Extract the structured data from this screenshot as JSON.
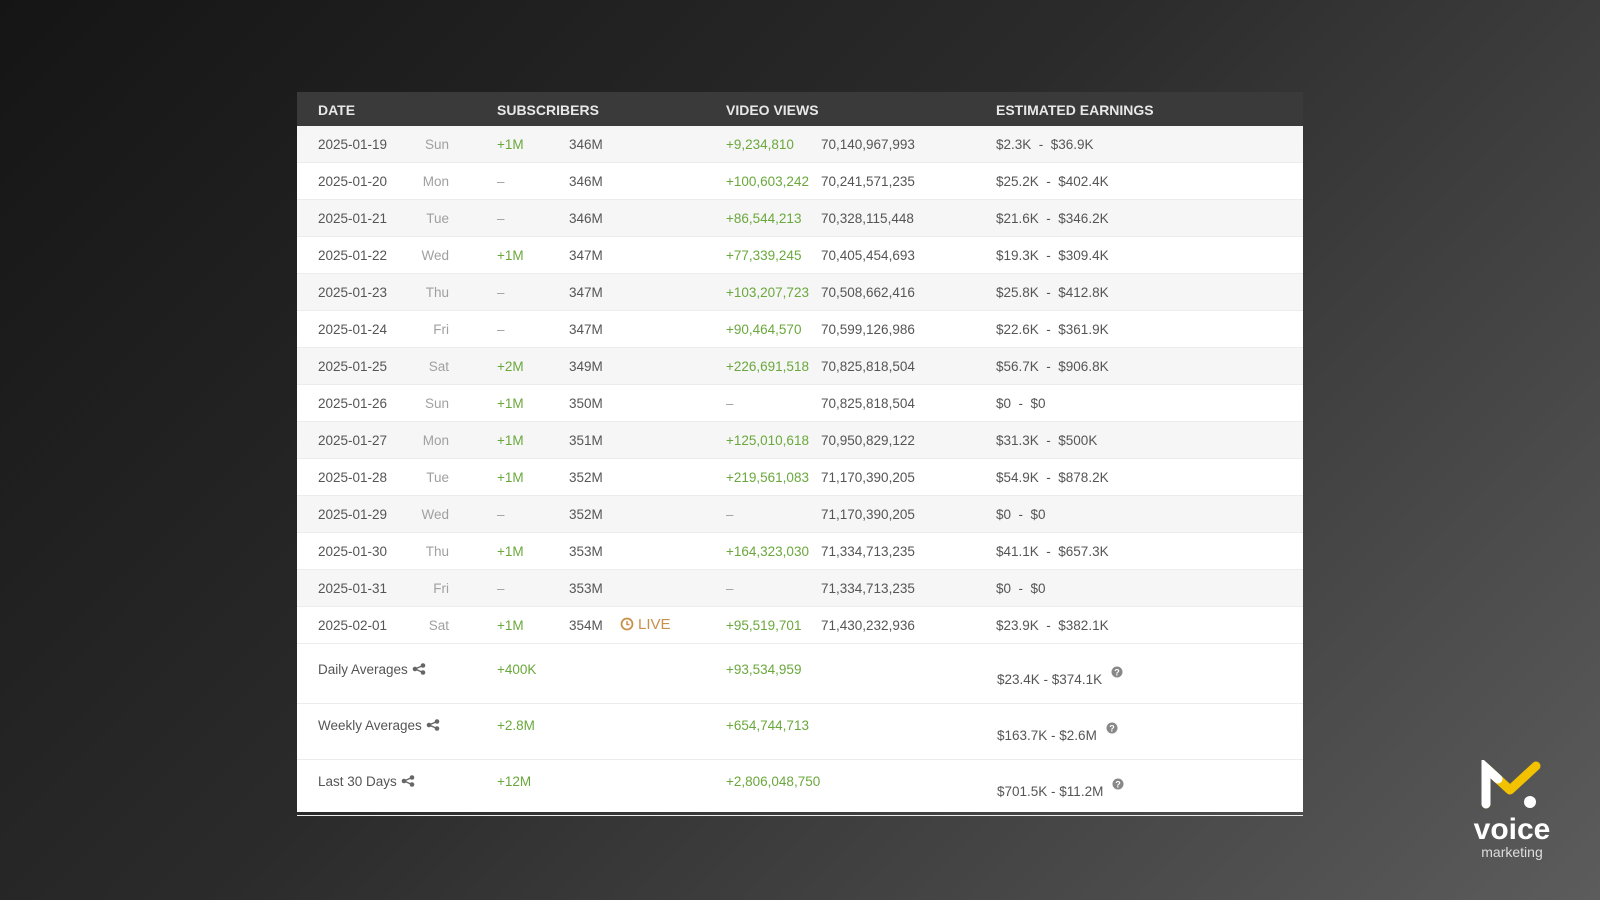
{
  "table": {
    "headers": [
      "DATE",
      "SUBSCRIBERS",
      "VIDEO VIEWS",
      "ESTIMATED EARNINGS"
    ],
    "rows": [
      {
        "date": "2025-01-19",
        "day": "Sun",
        "sub_change": "+1M",
        "subs": "346M",
        "view_change": "+9,234,810",
        "views": "70,140,967,993",
        "earnings": "$2.3K  -  $36.9K"
      },
      {
        "date": "2025-01-20",
        "day": "Mon",
        "sub_change": "–",
        "subs": "346M",
        "view_change": "+100,603,242",
        "views": "70,241,571,235",
        "earnings": "$25.2K  -  $402.4K"
      },
      {
        "date": "2025-01-21",
        "day": "Tue",
        "sub_change": "–",
        "subs": "346M",
        "view_change": "+86,544,213",
        "views": "70,328,115,448",
        "earnings": "$21.6K  -  $346.2K"
      },
      {
        "date": "2025-01-22",
        "day": "Wed",
        "sub_change": "+1M",
        "subs": "347M",
        "view_change": "+77,339,245",
        "views": "70,405,454,693",
        "earnings": "$19.3K  -  $309.4K"
      },
      {
        "date": "2025-01-23",
        "day": "Thu",
        "sub_change": "–",
        "subs": "347M",
        "view_change": "+103,207,723",
        "views": "70,508,662,416",
        "earnings": "$25.8K  -  $412.8K"
      },
      {
        "date": "2025-01-24",
        "day": "Fri",
        "sub_change": "–",
        "subs": "347M",
        "view_change": "+90,464,570",
        "views": "70,599,126,986",
        "earnings": "$22.6K  -  $361.9K"
      },
      {
        "date": "2025-01-25",
        "day": "Sat",
        "sub_change": "+2M",
        "subs": "349M",
        "view_change": "+226,691,518",
        "views": "70,825,818,504",
        "earnings": "$56.7K  -  $906.8K"
      },
      {
        "date": "2025-01-26",
        "day": "Sun",
        "sub_change": "+1M",
        "subs": "350M",
        "view_change": "–",
        "views": "70,825,818,504",
        "earnings": "$0  -  $0"
      },
      {
        "date": "2025-01-27",
        "day": "Mon",
        "sub_change": "+1M",
        "subs": "351M",
        "view_change": "+125,010,618",
        "views": "70,950,829,122",
        "earnings": "$31.3K  -  $500K"
      },
      {
        "date": "2025-01-28",
        "day": "Tue",
        "sub_change": "+1M",
        "subs": "352M",
        "view_change": "+219,561,083",
        "views": "71,170,390,205",
        "earnings": "$54.9K  -  $878.2K"
      },
      {
        "date": "2025-01-29",
        "day": "Wed",
        "sub_change": "–",
        "subs": "352M",
        "view_change": "–",
        "views": "71,170,390,205",
        "earnings": "$0  -  $0"
      },
      {
        "date": "2025-01-30",
        "day": "Thu",
        "sub_change": "+1M",
        "subs": "353M",
        "view_change": "+164,323,030",
        "views": "71,334,713,235",
        "earnings": "$41.1K  -  $657.3K"
      },
      {
        "date": "2025-01-31",
        "day": "Fri",
        "sub_change": "–",
        "subs": "353M",
        "view_change": "–",
        "views": "71,334,713,235",
        "earnings": "$0  -  $0"
      },
      {
        "date": "2025-02-01",
        "day": "Sat",
        "sub_change": "+1M",
        "subs": "354M",
        "live": "LIVE",
        "view_change": "+95,519,701",
        "views": "71,430,232,936",
        "earnings": "$23.9K  -  $382.1K"
      }
    ],
    "summary": [
      {
        "label": "Daily Averages",
        "subs": "+400K",
        "views": "+93,534,959",
        "earnings": "$23.4K - $374.1K"
      },
      {
        "label": "Weekly Averages",
        "subs": "+2.8M",
        "views": "+654,744,713",
        "earnings": "$163.7K - $2.6M"
      },
      {
        "label": "Last 30 Days",
        "subs": "+12M",
        "views": "+2,806,048,750",
        "earnings": "$701.5K - $11.2M"
      }
    ]
  },
  "logo": {
    "name": "voice",
    "tagline": "marketing"
  }
}
